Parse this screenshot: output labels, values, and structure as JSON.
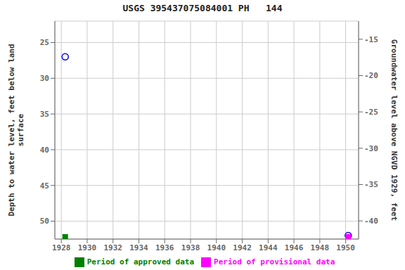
{
  "chart_data": {
    "type": "scatter",
    "title": "USGS 395437075084001 PH   144",
    "ylabel": "Depth to water level, feet below land\nsurface",
    "y2label": "Groundwater level above NGVD 1929, feet",
    "xlim": [
      1927.5,
      1951.0
    ],
    "xticks": [
      1928,
      1930,
      1932,
      1934,
      1936,
      1938,
      1940,
      1942,
      1944,
      1946,
      1948,
      1950
    ],
    "ylim": [
      52.5,
      22.0
    ],
    "yticks": [
      25,
      30,
      35,
      40,
      45,
      50
    ],
    "y2lim": [
      -42.5,
      -12.5
    ],
    "y2ticks": [
      -15,
      -20,
      -25,
      -30,
      -35,
      -40
    ],
    "grid": true,
    "legend": "bottom",
    "series": [
      {
        "color": "#0000ff",
        "marker": "open_circle",
        "x": [
          1928.3,
          1950.2
        ],
        "values": [
          27.0,
          52.0
        ]
      },
      {
        "name": "Period of approved data",
        "color": "#008000",
        "marker": "square",
        "x": [
          1928.3
        ],
        "values": [
          52.2
        ]
      },
      {
        "name": "Period of provisional data",
        "color": "#ff00ff",
        "marker": "square",
        "x": [
          1950.2
        ],
        "values": [
          52.2
        ]
      }
    ]
  }
}
